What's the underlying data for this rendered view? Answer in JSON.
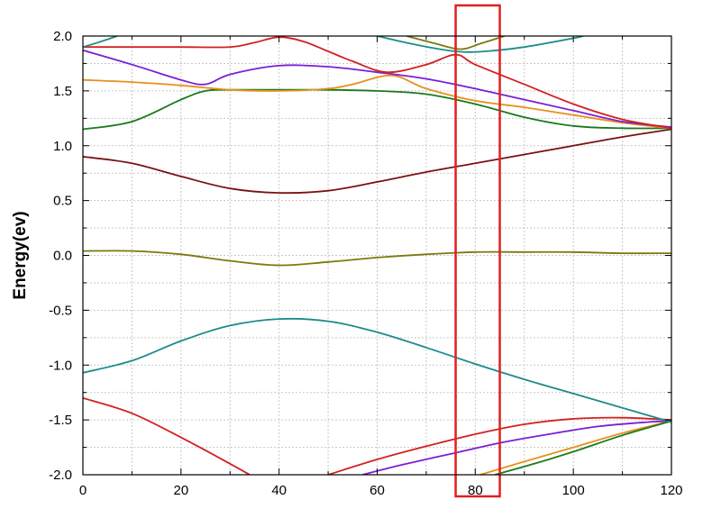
{
  "chart_data": {
    "type": "line",
    "xlabel": "",
    "ylabel": "Energy(ev)",
    "xlim": [
      0,
      120
    ],
    "ylim": [
      -2.0,
      2.0
    ],
    "grid": true,
    "x_ticks": [
      "0",
      "20",
      "40",
      "60",
      "80",
      "100",
      "120"
    ],
    "y_ticks": [
      "-2.0",
      "-1.5",
      "-1.0",
      "-0.5",
      "0.0",
      "0.5",
      "1.0",
      "1.5",
      "2.0"
    ],
    "highlight": {
      "x_range": [
        76,
        85
      ],
      "color": "#e02020"
    },
    "series": [
      {
        "color": "#d42020",
        "x": [
          0,
          10,
          20,
          30,
          34
        ],
        "y": [
          -1.3,
          -1.44,
          -1.66,
          -1.9,
          -2.0
        ]
      },
      {
        "color": "#d42020",
        "x": [
          50,
          60,
          70,
          80,
          90,
          100,
          110,
          120
        ],
        "y": [
          -2.0,
          -1.86,
          -1.74,
          -1.63,
          -1.54,
          -1.49,
          -1.48,
          -1.5
        ]
      },
      {
        "color": "#7b1fd6",
        "x": [
          57,
          65,
          75,
          85,
          95,
          105,
          115,
          120
        ],
        "y": [
          -2.0,
          -1.91,
          -1.81,
          -1.71,
          -1.63,
          -1.56,
          -1.52,
          -1.51
        ]
      },
      {
        "color": "#e8901a",
        "x": [
          81,
          90,
          100,
          110,
          120
        ],
        "y": [
          -2.0,
          -1.88,
          -1.75,
          -1.62,
          -1.51
        ]
      },
      {
        "color": "#1a7a1a",
        "x": [
          84,
          92,
          100,
          110,
          120
        ],
        "y": [
          -2.0,
          -1.9,
          -1.79,
          -1.64,
          -1.51
        ]
      },
      {
        "color": "#1e8a8a",
        "x": [
          0,
          10,
          20,
          30,
          40,
          50,
          60,
          70,
          80,
          90,
          100,
          110,
          120
        ],
        "y": [
          -1.07,
          -0.96,
          -0.78,
          -0.64,
          -0.58,
          -0.6,
          -0.7,
          -0.84,
          -0.99,
          -1.13,
          -1.26,
          -1.39,
          -1.52
        ]
      },
      {
        "color": "#7a7a10",
        "x": [
          0,
          10,
          20,
          30,
          40,
          50,
          60,
          70,
          80,
          90,
          100,
          110,
          120
        ],
        "y": [
          0.04,
          0.04,
          0.01,
          -0.05,
          -0.09,
          -0.06,
          -0.02,
          0.01,
          0.03,
          0.03,
          0.03,
          0.02,
          0.02
        ]
      },
      {
        "color": "#7a1212",
        "x": [
          0,
          10,
          20,
          30,
          40,
          50,
          60,
          70,
          80,
          90,
          100,
          110,
          120
        ],
        "y": [
          0.9,
          0.84,
          0.72,
          0.61,
          0.57,
          0.59,
          0.67,
          0.76,
          0.84,
          0.92,
          1.0,
          1.08,
          1.15
        ]
      },
      {
        "color": "#1a7a1a",
        "x": [
          0,
          10,
          20,
          25,
          30,
          40,
          50,
          60,
          70,
          80,
          90,
          100,
          110,
          120
        ],
        "y": [
          1.15,
          1.22,
          1.42,
          1.5,
          1.51,
          1.51,
          1.51,
          1.5,
          1.47,
          1.38,
          1.26,
          1.18,
          1.16,
          1.16
        ]
      },
      {
        "color": "#e8901a",
        "x": [
          0,
          10,
          20,
          30,
          40,
          50,
          55,
          63,
          70,
          80,
          90,
          100,
          110,
          120
        ],
        "y": [
          1.6,
          1.58,
          1.55,
          1.51,
          1.5,
          1.52,
          1.56,
          1.64,
          1.52,
          1.41,
          1.35,
          1.28,
          1.21,
          1.16
        ]
      },
      {
        "color": "#7b1fd6",
        "x": [
          0,
          10,
          20,
          25,
          30,
          40,
          50,
          60,
          70,
          80,
          90,
          100,
          110,
          120
        ],
        "y": [
          1.87,
          1.74,
          1.6,
          1.56,
          1.65,
          1.73,
          1.72,
          1.67,
          1.61,
          1.52,
          1.42,
          1.32,
          1.22,
          1.17
        ]
      },
      {
        "color": "#d42020",
        "x": [
          0,
          10,
          20,
          30,
          35,
          40,
          45,
          50,
          55,
          62,
          70,
          76,
          80,
          90,
          100,
          110,
          120
        ],
        "y": [
          1.9,
          1.9,
          1.9,
          1.9,
          1.94,
          1.99,
          1.95,
          1.86,
          1.77,
          1.67,
          1.74,
          1.83,
          1.74,
          1.56,
          1.38,
          1.24,
          1.16
        ]
      },
      {
        "color": "#1e8a8a",
        "x": [
          0,
          3,
          7
        ],
        "y": [
          1.9,
          1.94,
          2.0
        ]
      },
      {
        "color": "#1e8a8a",
        "x": [
          60,
          68,
          76,
          82,
          90,
          100,
          102
        ],
        "y": [
          2.0,
          1.92,
          1.86,
          1.86,
          1.9,
          1.98,
          2.0
        ]
      },
      {
        "color": "#7a7a10",
        "x": [
          66,
          72,
          77,
          81,
          86
        ],
        "y": [
          2.0,
          1.93,
          1.88,
          1.93,
          2.0
        ]
      }
    ]
  }
}
